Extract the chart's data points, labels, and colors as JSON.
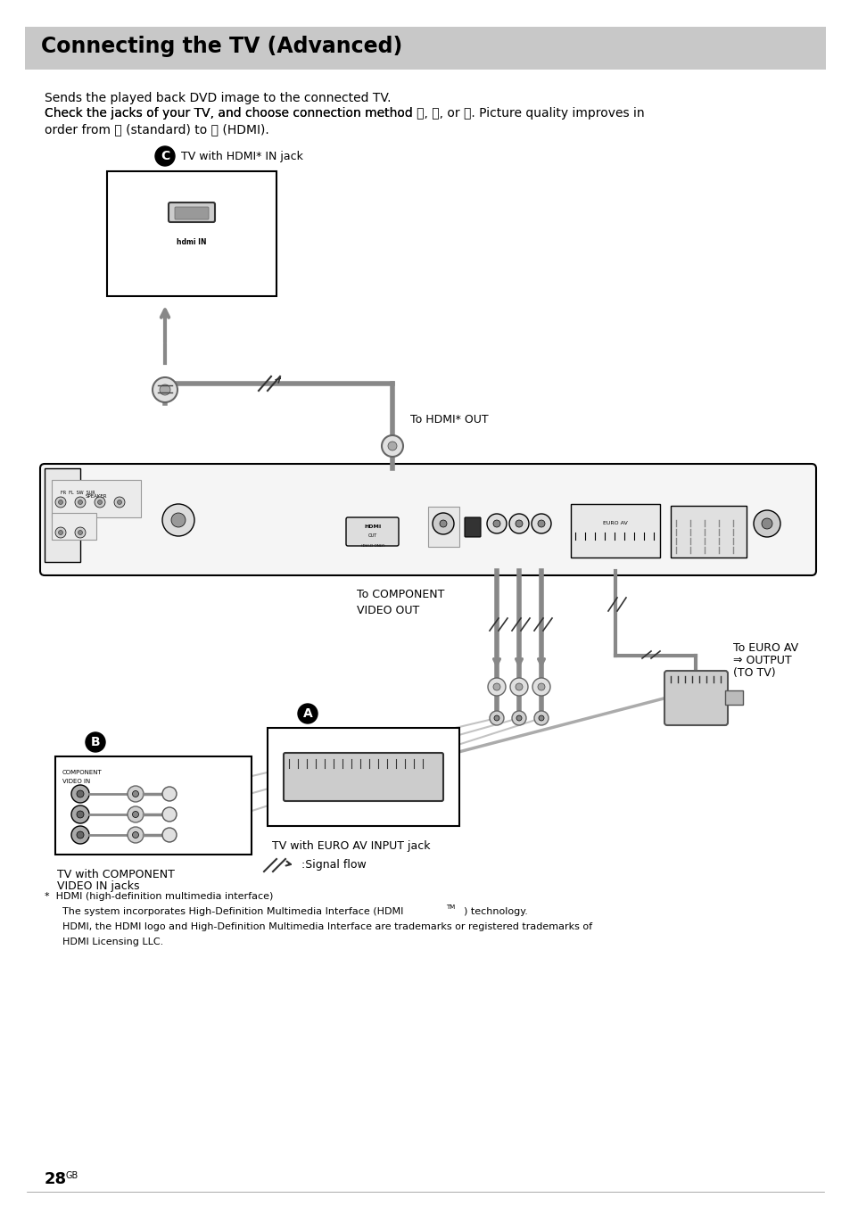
{
  "title": "Connecting the TV (Advanced)",
  "title_bg": "#c8c8c8",
  "page_bg": "#ffffff",
  "page_number": "28",
  "page_suffix": "GB",
  "body_text_line1": "Sends the played back DVD image to the connected TV.",
  "body_text_line2a": "Check the jacks of your TV, and choose connection method ",
  "body_text_line2b": ", ",
  "body_text_line2c": ", or ",
  "body_text_line2d": ". Picture quality improves in",
  "body_text_line3a": "order from ",
  "body_text_line3b": " (standard) to ",
  "body_text_line3c": " (HDMI).",
  "label_C_text": "TV with HDMI* IN jack",
  "label_hdmi_out": "To HDMI* OUT",
  "label_component": "To COMPONENT\nVIDEO OUT",
  "label_euro_av": "To EURO AV",
  "label_euro_av2": "⇒ OUTPUT",
  "label_euro_av3": "(TO TV)",
  "label_B_text1": "TV with COMPONENT",
  "label_B_text2": "VIDEO IN jacks",
  "label_A_text": "TV with EURO AV INPUT jack",
  "label_signal": ":Signal flow",
  "footnote1": "HDMI (high-definition multimedia interface)",
  "footnote2": "The system incorporates High-Definition Multimedia Interface (HDMI",
  "footnote2tm": "TM",
  "footnote2end": ") technology.",
  "footnote3": "HDMI, the HDMI logo and High-Definition Multimedia Interface are trademarks or registered trademarks of",
  "footnote4": "HDMI Licensing LLC.",
  "cable_color": "#888888",
  "border_color": "#000000",
  "device_fill": "#f5f5f5",
  "box_fill": "#ffffff",
  "title_fontsize": 17,
  "body_fontsize": 10,
  "label_fontsize": 9,
  "small_fontsize": 8,
  "page_fontsize": 13
}
